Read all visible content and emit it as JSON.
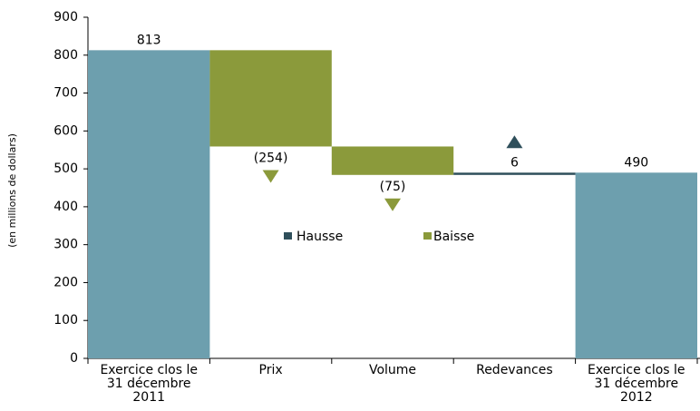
{
  "chart_data": {
    "type": "waterfall",
    "y_label": "(en millions de dollars)",
    "categories": [
      "Exercice clos le 31 décembre 2011",
      "Prix",
      "Volume",
      "Redevances",
      "Exercice clos le 31 décembre 2012"
    ],
    "values": [
      813,
      -254,
      -75,
      6,
      490
    ],
    "value_labels": [
      "813",
      "(254)",
      "(75)",
      "6",
      "490"
    ],
    "is_total": [
      true,
      false,
      false,
      false,
      true
    ],
    "total_color": "#6d9fae",
    "increase_color": "#2f4f5b",
    "decrease_color": "#8b9a3b",
    "legend": [
      {
        "name": "Hausse",
        "kind": "increase"
      },
      {
        "name": "Baisse",
        "kind": "decrease"
      }
    ],
    "ylim": [
      0,
      900
    ],
    "yticks": [
      0,
      100,
      200,
      300,
      400,
      500,
      600,
      700,
      800,
      900
    ],
    "grid": false
  }
}
